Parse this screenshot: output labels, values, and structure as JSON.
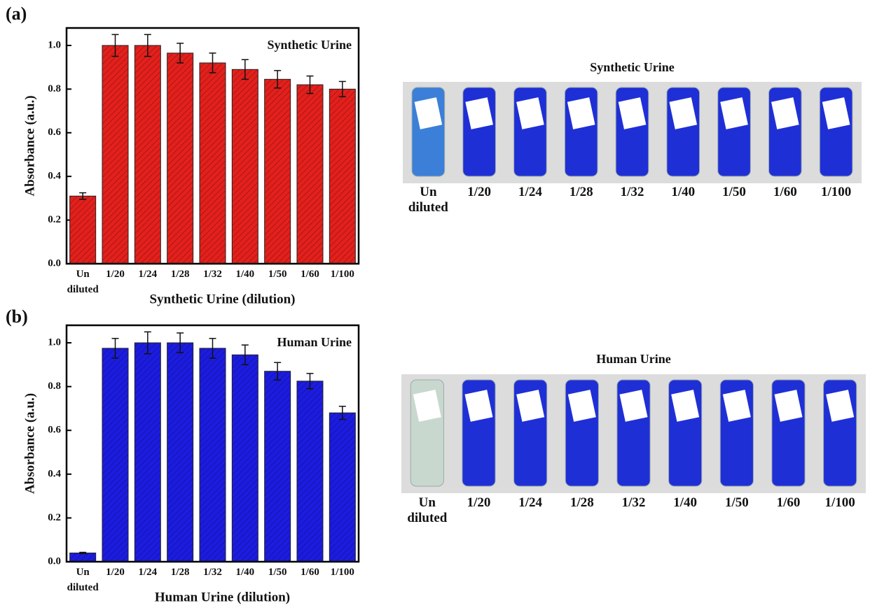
{
  "chart_data": [
    {
      "type": "bar",
      "panel_label": "(a)",
      "title": "Synthetic Urine",
      "x_label": "Synthetic Urine (dilution)",
      "y_label": "Absorbance (a.u.)",
      "categories": [
        "Un diluted",
        "1/20",
        "1/24",
        "1/28",
        "1/32",
        "1/40",
        "1/50",
        "1/60",
        "1/100"
      ],
      "series": [
        {
          "color": "#e3201c",
          "values": [
            0.31,
            1.0,
            1.0,
            0.965,
            0.92,
            0.89,
            0.845,
            0.82,
            0.8
          ],
          "errors": [
            0.015,
            0.05,
            0.05,
            0.045,
            0.045,
            0.045,
            0.04,
            0.04,
            0.035
          ]
        }
      ],
      "ylim": [
        0,
        1.08
      ],
      "yticks": [
        {
          "value": 0,
          "label": "0.0"
        },
        0.2,
        0.4,
        0.6,
        0.8,
        {
          "value": 1,
          "label": "1.0"
        }
      ]
    },
    {
      "type": "bar",
      "panel_label": "(b)",
      "title": "Human Urine",
      "x_label": "Human Urine (dilution)",
      "y_label": "Absorbance (a.u.)",
      "categories": [
        "Un diluted",
        "1/20",
        "1/24",
        "1/28",
        "1/32",
        "1/40",
        "1/50",
        "1/60",
        "1/100"
      ],
      "series": [
        {
          "color": "#1c1ce0",
          "values": [
            0.04,
            0.975,
            1.0,
            1.0,
            0.975,
            0.945,
            0.87,
            0.825,
            0.68
          ],
          "errors": [
            0.003,
            0.045,
            0.05,
            0.045,
            0.045,
            0.045,
            0.04,
            0.035,
            0.03
          ]
        }
      ],
      "ylim": [
        0,
        1.08
      ],
      "yticks": [
        {
          "value": 0,
          "label": "0.0"
        },
        0.2,
        0.4,
        0.6,
        0.8,
        {
          "value": 1,
          "label": "1.0"
        }
      ]
    }
  ],
  "photos": [
    {
      "title": "Synthetic Urine",
      "labels": [
        "Un diluted",
        "1/20",
        "1/24",
        "1/28",
        "1/32",
        "1/40",
        "1/50",
        "1/60",
        "1/100"
      ]
    },
    {
      "title": "Human Urine",
      "labels": [
        "Un diluted",
        "1/20",
        "1/24",
        "1/28",
        "1/32",
        "1/40",
        "1/50",
        "1/60",
        "1/100"
      ]
    }
  ]
}
